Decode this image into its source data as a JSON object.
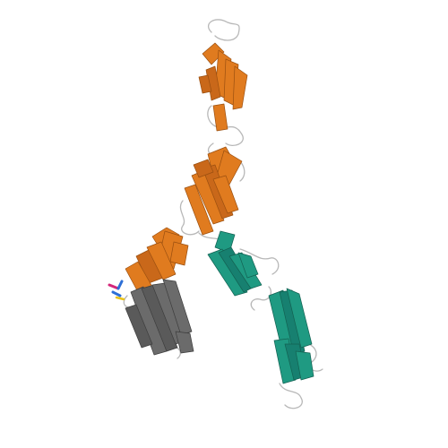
{
  "image": {
    "subject": "protein-cartoon",
    "background": "#ffffff"
  },
  "colors": {
    "chain_a": "#e07b1f",
    "chain_a_dark": "#9a4f10",
    "chain_b": "#1f9a82",
    "chain_b_dark": "#136152",
    "chain_c": "#6b6b6b",
    "chain_c_dark": "#3d3d3d",
    "coil": "#b8b8b8",
    "ligand_magenta": "#d4277a",
    "ligand_blue": "#2d6fd6",
    "ligand_yellow": "#e8c21a"
  }
}
